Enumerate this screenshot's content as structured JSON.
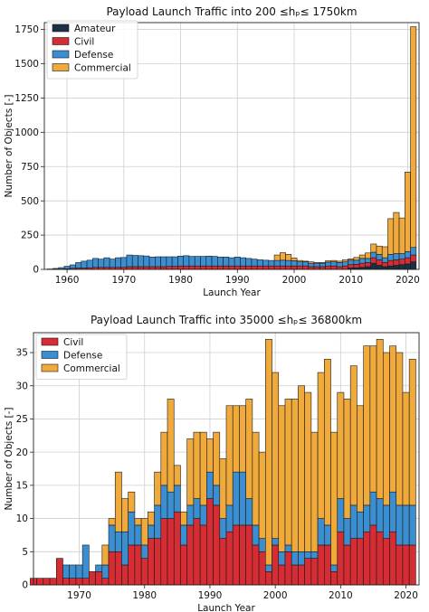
{
  "chart_data": [
    {
      "type": "bar",
      "stacked": true,
      "title": "Payload Launch Traffic into 200 ≤hₚ≤ 1750km",
      "xlabel": "Launch Year",
      "ylabel": "Number of Objects [-]",
      "xlim": [
        1956,
        2022
      ],
      "ylim": [
        0,
        1800
      ],
      "xticks": [
        1960,
        1970,
        1980,
        1990,
        2000,
        2010,
        2020
      ],
      "yticks": [
        0,
        250,
        500,
        750,
        1000,
        1250,
        1500,
        1750
      ],
      "grid": true,
      "legend_position": "top-left",
      "categories": [
        1957,
        1958,
        1959,
        1960,
        1961,
        1962,
        1963,
        1964,
        1965,
        1966,
        1967,
        1968,
        1969,
        1970,
        1971,
        1972,
        1973,
        1974,
        1975,
        1976,
        1977,
        1978,
        1979,
        1980,
        1981,
        1982,
        1983,
        1984,
        1985,
        1986,
        1987,
        1988,
        1989,
        1990,
        1991,
        1992,
        1993,
        1994,
        1995,
        1996,
        1997,
        1998,
        1999,
        2000,
        2001,
        2002,
        2003,
        2004,
        2005,
        2006,
        2007,
        2008,
        2009,
        2010,
        2011,
        2012,
        2013,
        2014,
        2015,
        2016,
        2017,
        2018,
        2019,
        2020,
        2021
      ],
      "series": [
        {
          "name": "Amateur",
          "color": "#1b2f45",
          "values": [
            0,
            0,
            0,
            0,
            0,
            0,
            0,
            0,
            0,
            0,
            0,
            0,
            0,
            0,
            0,
            0,
            0,
            0,
            0,
            0,
            0,
            0,
            0,
            0,
            0,
            0,
            0,
            0,
            0,
            0,
            0,
            0,
            0,
            0,
            0,
            0,
            0,
            0,
            0,
            0,
            0,
            0,
            0,
            0,
            0,
            0,
            0,
            0,
            0,
            0,
            0,
            0,
            0,
            10,
            12,
            15,
            20,
            45,
            30,
            20,
            25,
            30,
            35,
            40,
            55
          ]
        },
        {
          "name": "Civil",
          "color": "#d62c33",
          "values": [
            1,
            2,
            3,
            5,
            8,
            10,
            10,
            12,
            15,
            15,
            15,
            15,
            15,
            15,
            20,
            20,
            20,
            20,
            20,
            20,
            20,
            22,
            22,
            25,
            25,
            25,
            25,
            25,
            25,
            25,
            25,
            25,
            25,
            25,
            25,
            25,
            25,
            25,
            25,
            25,
            25,
            25,
            25,
            25,
            25,
            25,
            20,
            20,
            20,
            25,
            25,
            20,
            25,
            25,
            25,
            30,
            30,
            40,
            40,
            30,
            40,
            40,
            40,
            45,
            50
          ]
        },
        {
          "name": "Defense",
          "color": "#3b8ed0",
          "values": [
            2,
            5,
            10,
            18,
            25,
            40,
            50,
            55,
            65,
            60,
            70,
            60,
            70,
            72,
            85,
            82,
            80,
            78,
            70,
            72,
            72,
            70,
            70,
            72,
            75,
            70,
            70,
            70,
            72,
            70,
            65,
            65,
            60,
            65,
            60,
            55,
            50,
            45,
            42,
            40,
            40,
            42,
            40,
            38,
            30,
            30,
            25,
            25,
            25,
            28,
            30,
            30,
            30,
            32,
            30,
            35,
            30,
            40,
            40,
            35,
            45,
            45,
            40,
            45,
            55
          ]
        },
        {
          "name": "Commercial",
          "color": "#f0a93b",
          "values": [
            0,
            0,
            0,
            0,
            0,
            0,
            0,
            0,
            0,
            0,
            0,
            0,
            0,
            0,
            0,
            0,
            0,
            0,
            0,
            0,
            0,
            0,
            0,
            0,
            0,
            0,
            0,
            0,
            0,
            0,
            0,
            0,
            0,
            0,
            0,
            0,
            0,
            0,
            0,
            0,
            40,
            55,
            45,
            20,
            10,
            5,
            10,
            5,
            5,
            10,
            10,
            10,
            15,
            10,
            20,
            25,
            40,
            60,
            60,
            80,
            260,
            300,
            260,
            580,
            1610
          ]
        }
      ]
    },
    {
      "type": "bar",
      "stacked": true,
      "title": "Payload Launch Traffic into 35000 ≤hₚ≤ 36800km",
      "xlabel": "Launch Year",
      "ylabel": "Number of Objects [-]",
      "xlim": [
        1963,
        2022
      ],
      "ylim": [
        0,
        38
      ],
      "xticks": [
        1970,
        1980,
        1990,
        2000,
        2010,
        2020
      ],
      "yticks": [
        0,
        5,
        10,
        15,
        20,
        25,
        30,
        35
      ],
      "grid": true,
      "legend_position": "top-left",
      "categories": [
        1963,
        1964,
        1965,
        1966,
        1967,
        1968,
        1969,
        1970,
        1971,
        1972,
        1973,
        1974,
        1975,
        1976,
        1977,
        1978,
        1979,
        1980,
        1981,
        1982,
        1983,
        1984,
        1985,
        1986,
        1987,
        1988,
        1989,
        1990,
        1991,
        1992,
        1993,
        1994,
        1995,
        1996,
        1997,
        1998,
        1999,
        2000,
        2001,
        2002,
        2003,
        2004,
        2005,
        2006,
        2007,
        2008,
        2009,
        2010,
        2011,
        2012,
        2013,
        2014,
        2015,
        2016,
        2017,
        2018,
        2019,
        2020,
        2021
      ],
      "series": [
        {
          "name": "Civil",
          "color": "#d62c33",
          "values": [
            1,
            1,
            1,
            1,
            4,
            1,
            1,
            1,
            1,
            2,
            2,
            1,
            5,
            5,
            3,
            6,
            6,
            4,
            7,
            7,
            10,
            10,
            11,
            6,
            9,
            10,
            9,
            13,
            12,
            7,
            8,
            9,
            9,
            9,
            6,
            5,
            2,
            6,
            3,
            5,
            3,
            3,
            4,
            4,
            6,
            6,
            2,
            8,
            6,
            7,
            7,
            8,
            9,
            8,
            7,
            8,
            6,
            6,
            6
          ]
        },
        {
          "name": "Defense",
          "color": "#3b8ed0",
          "values": [
            0,
            0,
            0,
            0,
            0,
            2,
            2,
            2,
            5,
            0,
            1,
            2,
            4,
            3,
            5,
            5,
            3,
            2,
            2,
            5,
            5,
            4,
            4,
            3,
            3,
            3,
            3,
            4,
            3,
            3,
            4,
            8,
            8,
            4,
            3,
            2,
            1,
            1,
            2,
            1,
            2,
            2,
            1,
            1,
            4,
            3,
            1,
            5,
            4,
            5,
            4,
            4,
            5,
            5,
            5,
            6,
            6,
            6,
            6
          ]
        },
        {
          "name": "Commercial",
          "color": "#f0a93b",
          "values": [
            0,
            0,
            0,
            0,
            0,
            0,
            0,
            0,
            0,
            0,
            0,
            3,
            1,
            9,
            5,
            3,
            1,
            4,
            2,
            5,
            8,
            14,
            3,
            2,
            10,
            10,
            11,
            5,
            8,
            9,
            15,
            10,
            10,
            15,
            14,
            13,
            34,
            25,
            22,
            22,
            23,
            25,
            24,
            18,
            22,
            25,
            20,
            16,
            18,
            21,
            16,
            24,
            22,
            24,
            23,
            22,
            23,
            17,
            22
          ]
        }
      ]
    }
  ]
}
